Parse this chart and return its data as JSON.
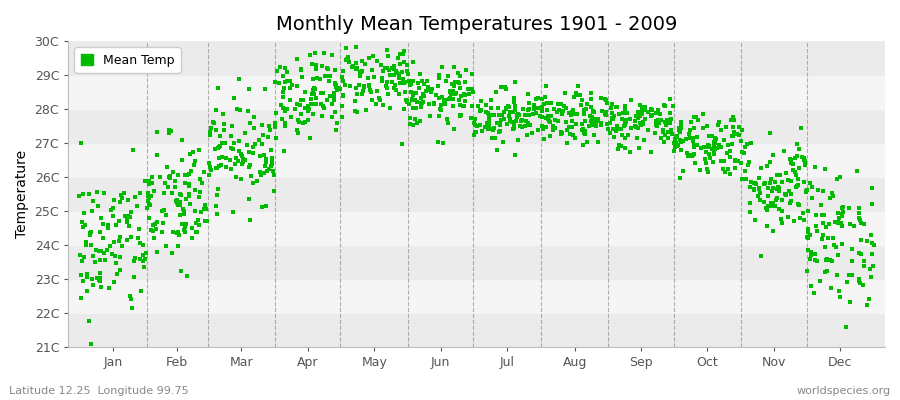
{
  "title": "Monthly Mean Temperatures 1901 - 2009",
  "ylabel": "Temperature",
  "subtitle_left": "Latitude 12.25  Longitude 99.75",
  "subtitle_right": "worldspecies.org",
  "legend_label": "Mean Temp",
  "n_years": 109,
  "months": [
    "Jan",
    "Feb",
    "Mar",
    "Apr",
    "May",
    "Jun",
    "Jul",
    "Aug",
    "Sep",
    "Oct",
    "Nov",
    "Dec"
  ],
  "month_days": [
    31,
    28,
    31,
    30,
    31,
    30,
    31,
    31,
    30,
    31,
    30,
    31
  ],
  "mean_temps": [
    24.0,
    25.2,
    26.8,
    28.5,
    28.9,
    28.3,
    27.8,
    27.7,
    27.6,
    27.0,
    25.8,
    24.2
  ],
  "std_temps": [
    1.1,
    1.0,
    0.75,
    0.65,
    0.55,
    0.45,
    0.4,
    0.38,
    0.38,
    0.48,
    0.75,
    1.0
  ],
  "ylim": [
    21,
    30
  ],
  "yticks": [
    21,
    22,
    23,
    24,
    25,
    26,
    27,
    28,
    29,
    30
  ],
  "marker_color": "#00BB00",
  "marker_size": 3.5,
  "bg_color": "#FFFFFF",
  "band_colors": [
    "#EBEBEB",
    "#F5F5F5"
  ],
  "vline_color": "#808080",
  "title_fontsize": 14,
  "axis_label_fontsize": 10,
  "tick_fontsize": 9,
  "annotation_fontsize": 8,
  "seed": 42
}
